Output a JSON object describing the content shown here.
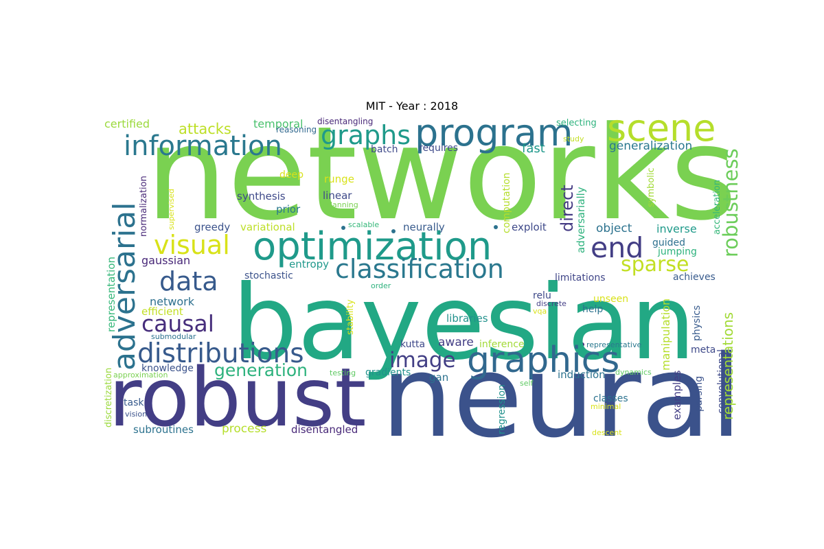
{
  "title": "MIT - Year : 2018",
  "words": [
    {
      "text": "networks",
      "color": "#7ad151"
    },
    {
      "text": "bayesian",
      "color": "#22a884"
    },
    {
      "text": "neural",
      "color": "#3b528b"
    },
    {
      "text": "robust",
      "color": "#433e85"
    },
    {
      "text": "program",
      "color": "#2c728e"
    },
    {
      "text": "optimization",
      "color": "#1f9a8a"
    },
    {
      "text": "scene",
      "color": "#b5de2b"
    },
    {
      "text": "adversarial",
      "color": "#2c728e"
    },
    {
      "text": "information",
      "color": "#2a788e"
    },
    {
      "text": "graphics",
      "color": "#31688e"
    },
    {
      "text": "classification",
      "color": "#2a788e"
    },
    {
      "text": "distributions",
      "color": "#375a8c"
    },
    {
      "text": "graphs",
      "color": "#1f9a8a"
    },
    {
      "text": "robustness",
      "color": "#6ccd5a"
    },
    {
      "text": "end",
      "color": "#433e85"
    },
    {
      "text": "visual",
      "color": "#d8e219"
    },
    {
      "text": "data",
      "color": "#375a8c"
    },
    {
      "text": "sparse",
      "color": "#c2df23"
    },
    {
      "text": "causal",
      "color": "#472e7c"
    },
    {
      "text": "image",
      "color": "#423f85"
    },
    {
      "text": "generation",
      "color": "#2db27d"
    },
    {
      "text": "representations",
      "color": "#a2da37"
    },
    {
      "text": "attacks",
      "color": "#bddf26"
    },
    {
      "text": "direct",
      "color": "#443a83"
    },
    {
      "text": "temporal",
      "color": "#4ac16d"
    },
    {
      "text": "certified",
      "color": "#9bd93c"
    },
    {
      "text": "generalization",
      "color": "#2a788e"
    },
    {
      "text": "fast",
      "color": "#1f988b"
    },
    {
      "text": "batch",
      "color": "#3e4989"
    },
    {
      "text": "requires",
      "color": "#3e4989"
    },
    {
      "text": "selecting",
      "color": "#2db27d"
    },
    {
      "text": "reasoning",
      "color": "#31688e"
    },
    {
      "text": "disentangling",
      "color": "#482878"
    },
    {
      "text": "study",
      "color": "#c2df23"
    },
    {
      "text": "normalization",
      "color": "#482878"
    },
    {
      "text": "supervised",
      "color": "#d8e219"
    },
    {
      "text": "deep",
      "color": "#d8e219"
    },
    {
      "text": "runge",
      "color": "#d8e219"
    },
    {
      "text": "synthesis",
      "color": "#3e4989"
    },
    {
      "text": "linear",
      "color": "#3e4989"
    },
    {
      "text": "planning",
      "color": "#7ad151"
    },
    {
      "text": "prior",
      "color": "#2a788e"
    },
    {
      "text": "computation",
      "color": "#b5de2b"
    },
    {
      "text": "adversarially",
      "color": "#2db27d"
    },
    {
      "text": "symbolic",
      "color": "#a2da37"
    },
    {
      "text": "acceleration",
      "color": "#35b779"
    },
    {
      "text": "greedy",
      "color": "#3b528b"
    },
    {
      "text": "variational",
      "color": "#bddf26"
    },
    {
      "text": "scalable",
      "color": "#35b779"
    },
    {
      "text": "neurally",
      "color": "#375a8c"
    },
    {
      "text": "exploit",
      "color": "#3e4989"
    },
    {
      "text": "object",
      "color": "#2c728e"
    },
    {
      "text": "inverse",
      "color": "#1f9a8a"
    },
    {
      "text": "guided",
      "color": "#2d708e"
    },
    {
      "text": "jumping",
      "color": "#2db27d"
    },
    {
      "text": "gaussian",
      "color": "#482878"
    },
    {
      "text": "entropy",
      "color": "#1f988b"
    },
    {
      "text": "stochastic",
      "color": "#3b528b"
    },
    {
      "text": "order",
      "color": "#2db27d"
    },
    {
      "text": "limitations",
      "color": "#404688"
    },
    {
      "text": "achieves",
      "color": "#375a8c"
    },
    {
      "text": "representation",
      "color": "#35b779"
    },
    {
      "text": "network",
      "color": "#2d708e"
    },
    {
      "text": "efficient",
      "color": "#c2df23"
    },
    {
      "text": "libraries",
      "color": "#21918c"
    },
    {
      "text": "relu",
      "color": "#3e4989"
    },
    {
      "text": "discrete",
      "color": "#433e85"
    },
    {
      "text": "vqa",
      "color": "#d8e219"
    },
    {
      "text": "unseen",
      "color": "#d8e219"
    },
    {
      "text": "help",
      "color": "#2c728e"
    },
    {
      "text": "manipulation",
      "color": "#b5de2b"
    },
    {
      "text": "physics",
      "color": "#375a8c"
    },
    {
      "text": "stability",
      "color": "#d8e219"
    },
    {
      "text": "submodular",
      "color": "#2c728e"
    },
    {
      "text": "discretization",
      "color": "#9bd93c"
    },
    {
      "text": "kutta",
      "color": "#3e4989"
    },
    {
      "text": "aware",
      "color": "#433e85"
    },
    {
      "text": "inference",
      "color": "#a2da37"
    },
    {
      "text": "representative",
      "color": "#2a788e"
    },
    {
      "text": "meta",
      "color": "#3e4989"
    },
    {
      "text": "knowledge",
      "color": "#3b528b"
    },
    {
      "text": "approximation",
      "color": "#7ad151"
    },
    {
      "text": "testing",
      "color": "#5ec962"
    },
    {
      "text": "gradients",
      "color": "#21918c"
    },
    {
      "text": "gan",
      "color": "#2c728e"
    },
    {
      "text": "examples",
      "color": "#433e85"
    },
    {
      "text": "induction",
      "color": "#2c728e"
    },
    {
      "text": "dynamics",
      "color": "#5ec962"
    },
    {
      "text": "parsing",
      "color": "#3b528b"
    },
    {
      "text": "convolutional",
      "color": "#3e4989"
    },
    {
      "text": "regression",
      "color": "#21918c"
    },
    {
      "text": "self",
      "color": "#5ec962"
    },
    {
      "text": "task",
      "color": "#375a8c"
    },
    {
      "text": "classes",
      "color": "#2c728e"
    },
    {
      "text": "vision",
      "color": "#3b528b"
    },
    {
      "text": "minimal",
      "color": "#d8e219"
    },
    {
      "text": "subroutines",
      "color": "#2c728e"
    },
    {
      "text": "process",
      "color": "#b5de2b"
    },
    {
      "text": "disentangled",
      "color": "#482878"
    },
    {
      "text": "descent",
      "color": "#d8e219"
    }
  ]
}
